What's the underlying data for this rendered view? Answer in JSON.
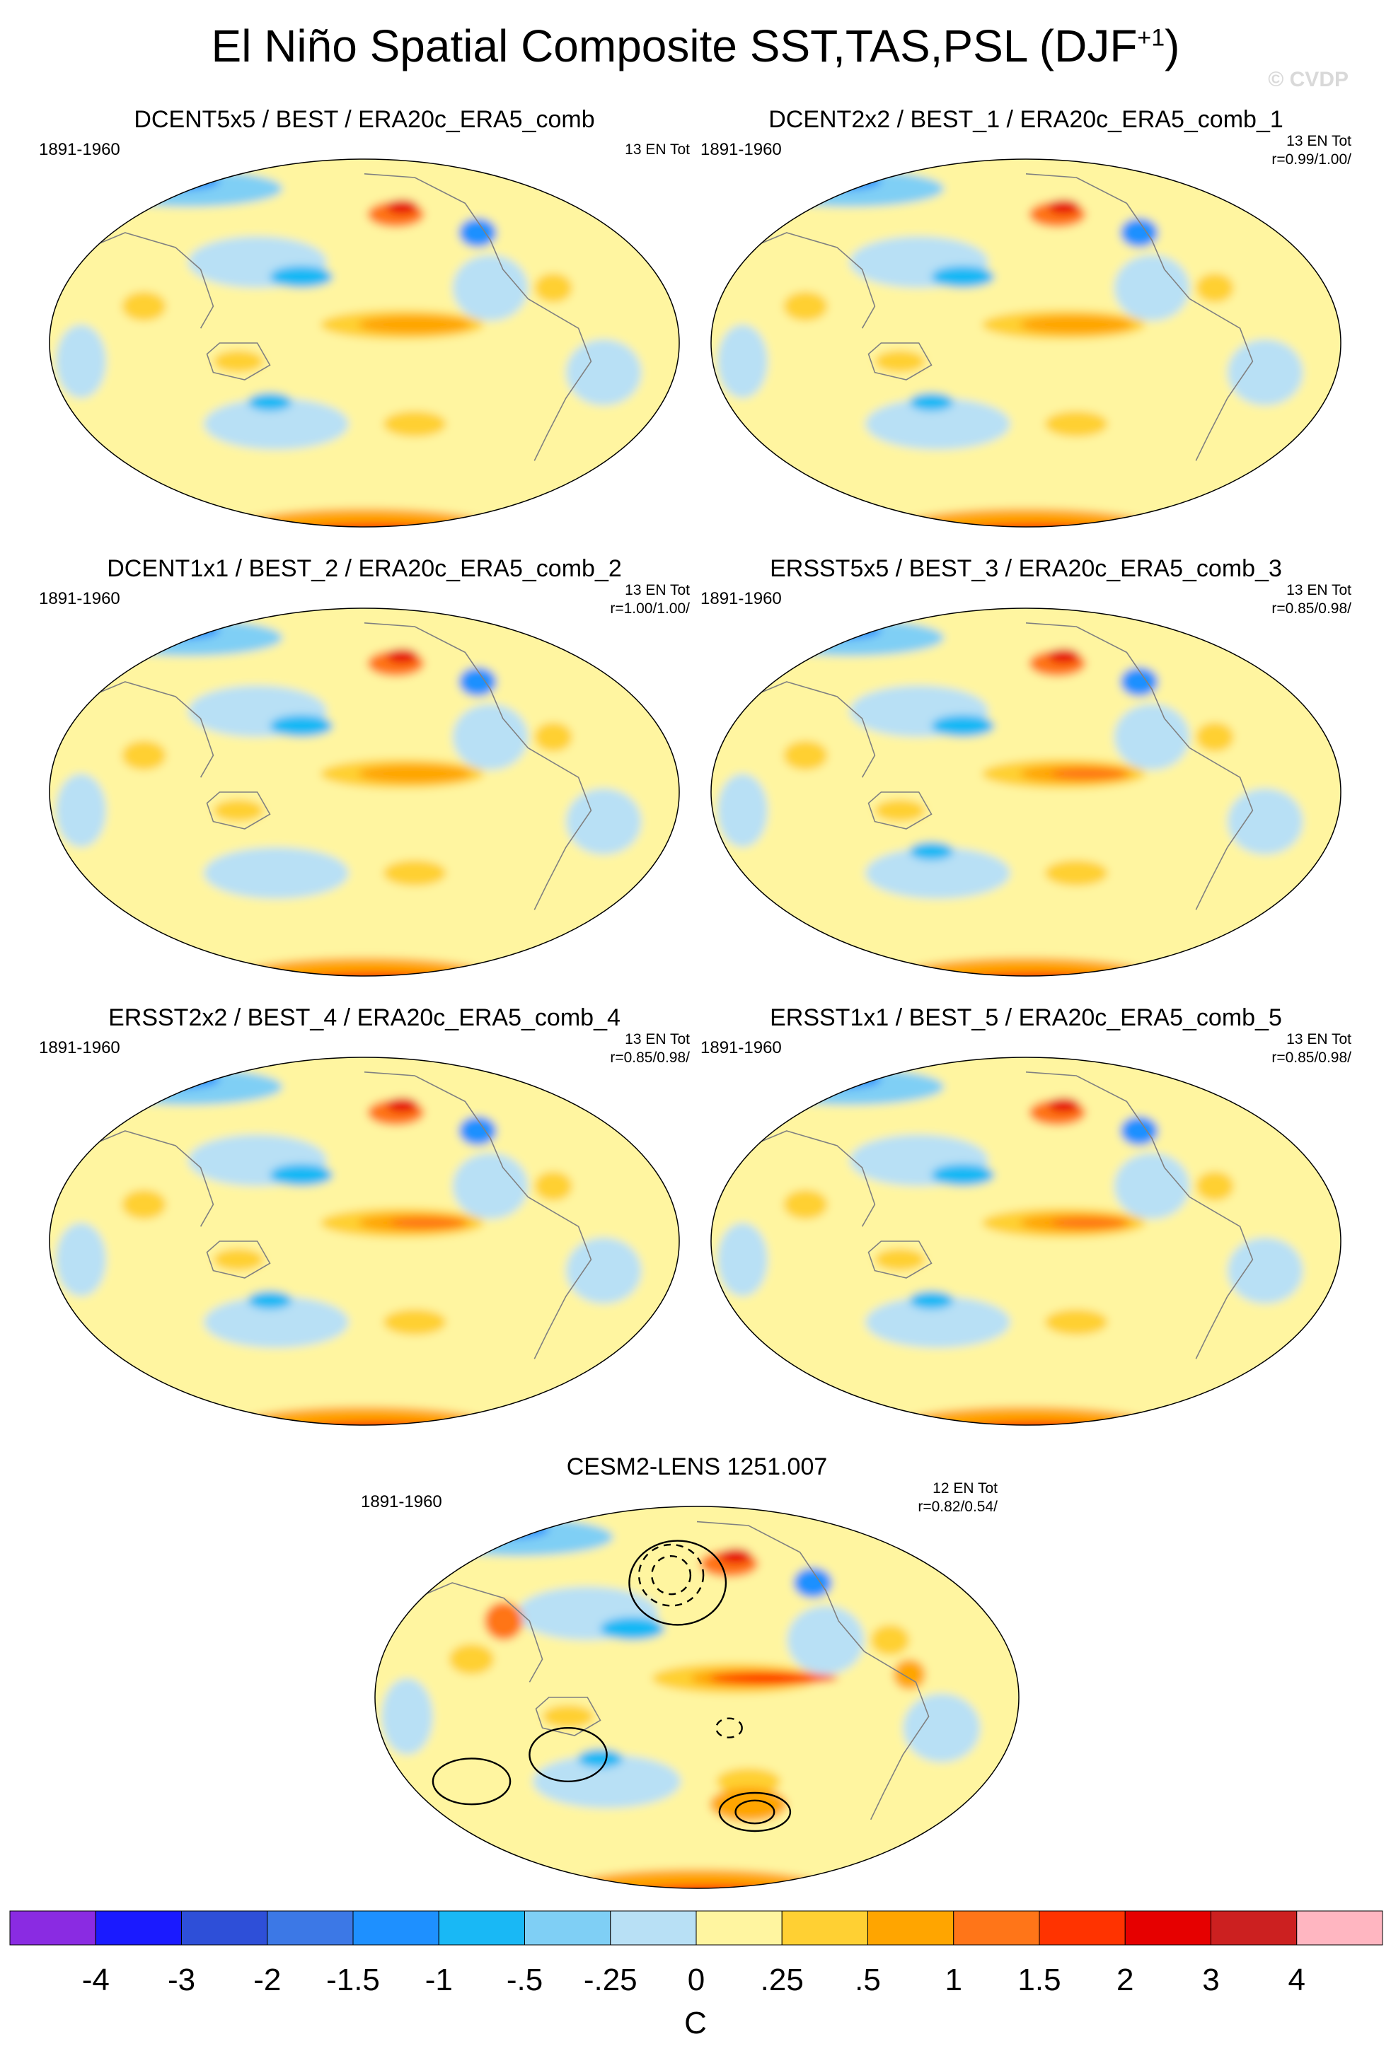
{
  "header": {
    "title": "El Niño Spatial Composite SST,TAS,PSL (DJF",
    "title_sup": "+1",
    "title_close": ")",
    "watermark": "© CVDP"
  },
  "panels": [
    {
      "title": "DCENT5x5 / BEST / ERA20c_ERA5_comb",
      "period": "1891-1960",
      "count": "13 EN Tot",
      "corr": ""
    },
    {
      "title": "DCENT2x2 / BEST_1 / ERA20c_ERA5_comb_1",
      "period": "1891-1960",
      "count": "13 EN Tot",
      "corr": "r=0.99/1.00/"
    },
    {
      "title": "DCENT1x1 / BEST_2 / ERA20c_ERA5_comb_2",
      "period": "1891-1960",
      "count": "13 EN Tot",
      "corr": "r=1.00/1.00/"
    },
    {
      "title": "ERSST5x5 / BEST_3 / ERA20c_ERA5_comb_3",
      "period": "1891-1960",
      "count": "13 EN Tot",
      "corr": "r=0.85/0.98/"
    },
    {
      "title": "ERSST2x2 / BEST_4 / ERA20c_ERA5_comb_4",
      "period": "1891-1960",
      "count": "13 EN Tot",
      "corr": "r=0.85/0.98/"
    },
    {
      "title": "ERSST1x1 / BEST_5 / ERA20c_ERA5_comb_5",
      "period": "1891-1960",
      "count": "13 EN Tot",
      "corr": "r=0.85/0.98/"
    },
    {
      "title": "CESM2-LENS 1251.007",
      "period": "1891-1960",
      "count": "12 EN Tot",
      "corr": "r=0.82/0.54/"
    }
  ],
  "colorbar": {
    "units": "C",
    "labels": [
      "-4",
      "-3",
      "-2",
      "-1.5",
      "-1",
      "-.5",
      "-.25",
      "0",
      ".25",
      ".5",
      "1",
      "1.5",
      "2",
      "3",
      "4"
    ],
    "colors": [
      "#8a2be2",
      "#1a1aff",
      "#2e4fd8",
      "#3c78e6",
      "#1e90ff",
      "#19b8f5",
      "#7fcff5",
      "#b8e0f5",
      "#fff5a0",
      "#ffd033",
      "#ffa500",
      "#ff7518",
      "#ff3300",
      "#e60000",
      "#cc2020",
      "#ffb6c1"
    ]
  },
  "palette": {
    "land_outline": "#808080",
    "psl_contour": "#000000",
    "missing": "#ffffff"
  }
}
